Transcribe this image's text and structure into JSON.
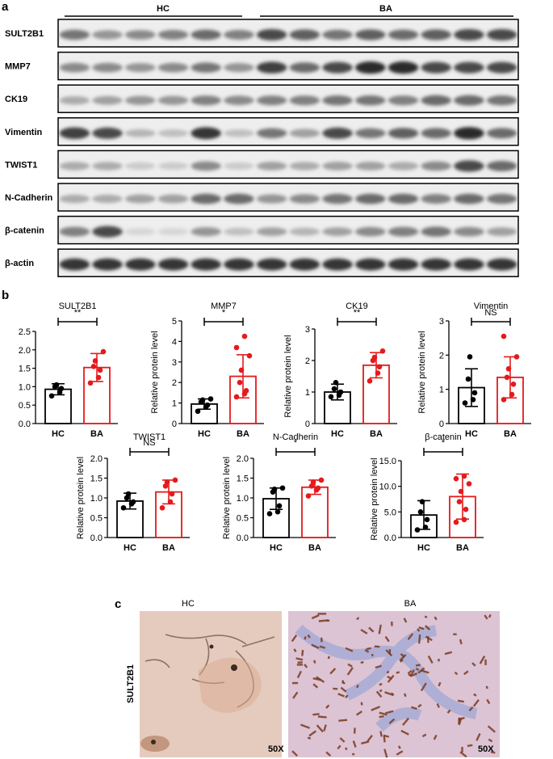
{
  "panels": {
    "a": "a",
    "b": "b",
    "c": "c"
  },
  "blot": {
    "group_hc": "HC",
    "group_ba": "BA",
    "rows": [
      {
        "label": "SULT2B1",
        "intensity": [
          0.55,
          0.4,
          0.45,
          0.5,
          0.6,
          0.5,
          0.75,
          0.65,
          0.55,
          0.65,
          0.6,
          0.65,
          0.75,
          0.75
        ]
      },
      {
        "label": "MMP7",
        "intensity": [
          0.45,
          0.45,
          0.4,
          0.45,
          0.55,
          0.4,
          0.8,
          0.6,
          0.75,
          0.9,
          0.9,
          0.75,
          0.75,
          0.75
        ]
      },
      {
        "label": "CK19",
        "intensity": [
          0.3,
          0.35,
          0.4,
          0.4,
          0.5,
          0.45,
          0.5,
          0.5,
          0.55,
          0.55,
          0.5,
          0.6,
          0.6,
          0.55
        ]
      },
      {
        "label": "Vimentin",
        "intensity": [
          0.8,
          0.75,
          0.25,
          0.2,
          0.85,
          0.2,
          0.55,
          0.35,
          0.75,
          0.55,
          0.65,
          0.6,
          0.9,
          0.6
        ]
      },
      {
        "label": "TWIST1",
        "intensity": [
          0.3,
          0.3,
          0.15,
          0.15,
          0.45,
          0.15,
          0.35,
          0.3,
          0.35,
          0.35,
          0.3,
          0.45,
          0.75,
          0.6
        ]
      },
      {
        "label": "N-Cadherin",
        "intensity": [
          0.3,
          0.3,
          0.35,
          0.35,
          0.6,
          0.6,
          0.4,
          0.45,
          0.55,
          0.6,
          0.6,
          0.5,
          0.6,
          0.55
        ]
      },
      {
        "label": "β-catenin",
        "intensity": [
          0.5,
          0.75,
          0.1,
          0.1,
          0.4,
          0.2,
          0.35,
          0.25,
          0.35,
          0.45,
          0.5,
          0.55,
          0.45,
          0.35
        ]
      },
      {
        "label": "β-actin",
        "intensity": [
          0.85,
          0.85,
          0.85,
          0.85,
          0.85,
          0.85,
          0.85,
          0.85,
          0.85,
          0.85,
          0.85,
          0.85,
          0.85,
          0.85
        ]
      }
    ]
  },
  "colors": {
    "hc": "#000000",
    "ba": "#e41a1c",
    "ihc_bg_hc": "#e4c9bd",
    "ihc_bg_ba": "#dcc3d4"
  },
  "chart_data": [
    {
      "type": "bar",
      "title": "SULT2B1",
      "ylabel": "",
      "ylim": [
        0,
        2.5
      ],
      "yticks": [
        "0.0",
        "0.5",
        "1.0",
        "1.5",
        "2.0",
        "2.5"
      ],
      "significance": "**",
      "categories": [
        "HC",
        "BA"
      ],
      "values": [
        0.93,
        1.52
      ],
      "sd": [
        0.15,
        0.38
      ],
      "points": {
        "HC": [
          0.75,
          0.85,
          0.95,
          1.0,
          1.05
        ],
        "BA": [
          1.1,
          1.25,
          1.45,
          1.55,
          1.7,
          1.95
        ]
      }
    },
    {
      "type": "bar",
      "title": "MMP7",
      "ylabel": "Relative protein level",
      "ylim": [
        0,
        5
      ],
      "yticks": [
        "0",
        "1",
        "2",
        "3",
        "4",
        "5"
      ],
      "significance": "*",
      "categories": [
        "HC",
        "BA"
      ],
      "values": [
        0.95,
        2.3
      ],
      "sd": [
        0.25,
        1.05
      ],
      "points": {
        "HC": [
          0.6,
          0.8,
          0.9,
          1.05,
          1.15,
          1.2
        ],
        "BA": [
          1.3,
          1.45,
          1.6,
          2.0,
          2.6,
          3.3,
          3.7,
          4.25
        ]
      }
    },
    {
      "type": "bar",
      "title": "CK19",
      "ylabel": "Relative protein level",
      "ylim": [
        0,
        3
      ],
      "yticks": [
        "0",
        "1",
        "2",
        "3"
      ],
      "significance": "**",
      "categories": [
        "HC",
        "BA"
      ],
      "values": [
        1.0,
        1.85
      ],
      "sd": [
        0.25,
        0.4
      ],
      "points": {
        "HC": [
          0.85,
          0.9,
          1.0,
          1.1,
          1.3
        ],
        "BA": [
          1.35,
          1.6,
          1.8,
          2.0,
          2.1,
          2.3
        ]
      }
    },
    {
      "type": "bar",
      "title": "Vimentin",
      "ylabel": "Relative protein level",
      "ylim": [
        0,
        3
      ],
      "yticks": [
        "0",
        "1",
        "2",
        "3"
      ],
      "significance": "NS",
      "categories": [
        "HC",
        "BA"
      ],
      "values": [
        1.05,
        1.35
      ],
      "sd": [
        0.55,
        0.6
      ],
      "points": {
        "HC": [
          0.6,
          0.7,
          0.9,
          1.3,
          1.95
        ],
        "BA": [
          0.7,
          0.85,
          1.15,
          1.35,
          1.6,
          1.95,
          2.55
        ]
      }
    },
    {
      "type": "bar",
      "title": "TWIST1",
      "ylabel": "Relative protein level",
      "ylim": [
        0,
        2.0
      ],
      "yticks": [
        "0.0",
        "0.5",
        "1.0",
        "1.5",
        "2.0"
      ],
      "significance": "NS",
      "categories": [
        "HC",
        "BA"
      ],
      "values": [
        0.92,
        1.15
      ],
      "sd": [
        0.2,
        0.3
      ],
      "points": {
        "HC": [
          0.75,
          0.85,
          0.9,
          1.0,
          1.1
        ],
        "BA": [
          0.75,
          0.9,
          1.1,
          1.3,
          1.4,
          1.45
        ]
      }
    },
    {
      "type": "bar",
      "title": "N-Cadherin",
      "ylabel": "Relative protein level",
      "ylim": [
        0,
        2.0
      ],
      "yticks": [
        "0.0",
        "0.5",
        "1.0",
        "1.5",
        "2.0"
      ],
      "significance": "*",
      "categories": [
        "HC",
        "BA"
      ],
      "values": [
        0.98,
        1.27
      ],
      "sd": [
        0.27,
        0.18
      ],
      "points": {
        "HC": [
          0.6,
          0.65,
          0.8,
          1.15,
          1.22,
          1.25
        ],
        "BA": [
          1.05,
          1.2,
          1.25,
          1.3,
          1.4,
          1.45
        ]
      }
    },
    {
      "type": "bar",
      "title": "β-catenin",
      "ylabel": "Relative protein level",
      "ylim": [
        0,
        15
      ],
      "yticks": [
        "0.0",
        "5.0",
        "10.0",
        "15.0"
      ],
      "significance": "*",
      "categories": [
        "HC",
        "BA"
      ],
      "values": [
        4.4,
        8.0
      ],
      "sd": [
        2.8,
        4.4
      ],
      "points": {
        "HC": [
          1.5,
          2.0,
          3.5,
          5.0,
          7.0
        ],
        "BA": [
          3.0,
          3.5,
          5.5,
          7.0,
          9.0,
          10.5,
          11.5,
          12.0
        ]
      }
    }
  ],
  "ihc": {
    "row_label": "SULT2B1",
    "left_title": "HC",
    "right_title": "BA",
    "left_mag": "50X",
    "right_mag": "50X"
  }
}
